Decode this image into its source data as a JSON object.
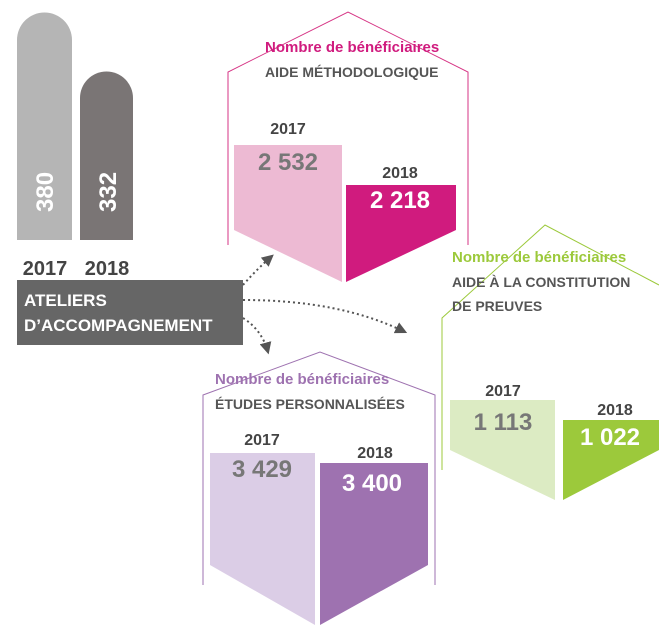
{
  "ateliers": {
    "bars": [
      {
        "value": "380",
        "year": "2017"
      },
      {
        "value": "332",
        "year": "2018"
      }
    ],
    "label": [
      "ATELIERS",
      "D’ACCOMPAGNEMENT"
    ]
  },
  "methodologique": {
    "title": "Nombre de bénéficiaires",
    "subtitle": [
      "AIDE MÉTHODOLOGIQUE"
    ],
    "items": [
      {
        "year": "2017",
        "value": "2 532"
      },
      {
        "year": "2018",
        "value": "2 218"
      }
    ]
  },
  "preuves": {
    "title": "Nombre de bénéficiaires",
    "subtitle": [
      "AIDE À LA CONSTITUTION",
      "DE PREUVES"
    ],
    "items": [
      {
        "year": "2017",
        "value": "1 113"
      },
      {
        "year": "2018",
        "value": "1 022"
      }
    ]
  },
  "etudes": {
    "title": "Nombre de bénéficiaires",
    "subtitle": [
      "ÉTUDES PERSONNALISÉES"
    ],
    "items": [
      {
        "year": "2017",
        "value": "3 429"
      },
      {
        "year": "2018",
        "value": "3 400"
      }
    ]
  }
}
